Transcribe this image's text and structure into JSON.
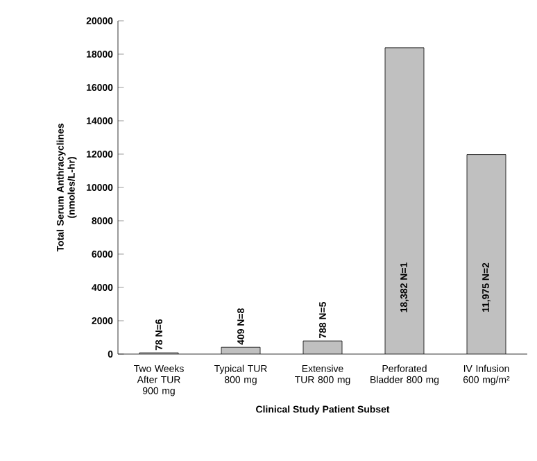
{
  "chart_data": {
    "type": "bar",
    "xlabel": "Clinical Study Patient Subset",
    "ylabel": "Total Serum Anthracyclines (nmoles/L-hr)",
    "categories": [
      "Two Weeks After TUR 900 mg",
      "Typical TUR 800 mg",
      "Extensive TUR 800 mg",
      "Perforated Bladder 800 mg",
      "IV Infusion 600 mg/m²"
    ],
    "values": [
      78,
      409,
      788,
      18382,
      11975
    ],
    "value_labels": [
      "78 N=6",
      "409 N=8",
      "788 N=5",
      "18,382 N=1",
      "11,975 N=2"
    ],
    "color": "#c0c0c0",
    "ylim": [
      0,
      20000
    ],
    "yticks": [
      0,
      2000,
      4000,
      6000,
      8000,
      10000,
      12000,
      14000,
      16000,
      18000,
      20000
    ],
    "grid": false
  }
}
